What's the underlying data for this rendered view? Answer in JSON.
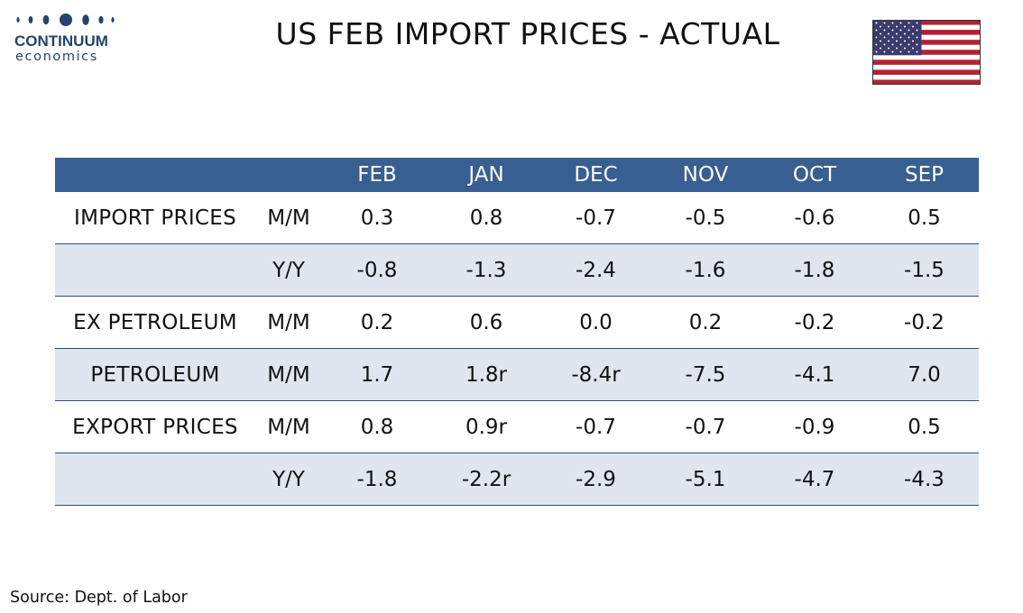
{
  "logo": {
    "name": "CONTINUUM",
    "sub": "economics",
    "color": "#23456e"
  },
  "title": "US FEB IMPORT PRICES - ACTUAL",
  "flag": {
    "icon": "us-flag-icon",
    "colors": {
      "red": "#b22234",
      "white": "#ffffff",
      "blue": "#3c3b6e"
    }
  },
  "chart_data": {
    "type": "table",
    "columns": [
      "",
      "",
      "FEB",
      "JAN",
      "DEC",
      "NOV",
      "OCT",
      "SEP"
    ],
    "rows": [
      {
        "label": "IMPORT PRICES",
        "measure": "M/M",
        "values": [
          "0.3",
          "0.8",
          "-0.7",
          "-0.5",
          "-0.6",
          "0.5"
        ],
        "shaded": false
      },
      {
        "label": "",
        "measure": "Y/Y",
        "values": [
          "-0.8",
          "-1.3",
          "-2.4",
          "-1.6",
          "-1.8",
          "-1.5"
        ],
        "shaded": true
      },
      {
        "label": "EX PETROLEUM",
        "measure": "M/M",
        "values": [
          "0.2",
          "0.6",
          "0.0",
          "0.2",
          "-0.2",
          "-0.2"
        ],
        "shaded": false
      },
      {
        "label": "PETROLEUM",
        "measure": "M/M",
        "values": [
          "1.7",
          "1.8r",
          "-8.4r",
          "-7.5",
          "-4.1",
          "7.0"
        ],
        "shaded": true
      },
      {
        "label": "EXPORT PRICES",
        "measure": "M/M",
        "values": [
          "0.8",
          "0.9r",
          "-0.7",
          "-0.7",
          "-0.9",
          "0.5"
        ],
        "shaded": false
      },
      {
        "label": "",
        "measure": "Y/Y",
        "values": [
          "-1.8",
          "-2.2r",
          "-2.9",
          "-5.1",
          "-4.7",
          "-4.3"
        ],
        "shaded": true
      }
    ],
    "header_color": "#375f91",
    "shade_color": "#dfe6f0"
  },
  "source": "Source: Dept. of Labor"
}
